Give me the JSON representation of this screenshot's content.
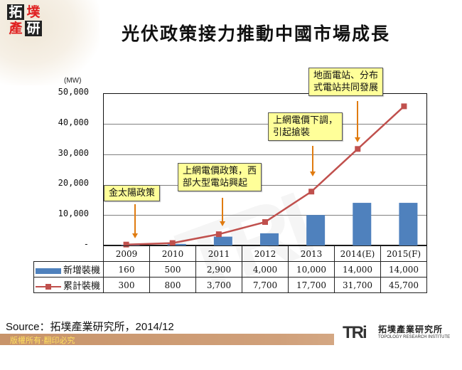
{
  "logo": {
    "chars": [
      "拓",
      "墣",
      "產",
      "研"
    ]
  },
  "title": "光伏政策接力推動中國市場成長",
  "y_axis": {
    "unit": "(MW)",
    "ticks": [
      "50,000",
      "40,000",
      "30,000",
      "20,000",
      "10,000",
      "-"
    ]
  },
  "callouts": [
    {
      "text": "金太陽政策",
      "year": "2009"
    },
    {
      "text": "上網電價政策，西\n部大型電站興起",
      "year": "2011"
    },
    {
      "text": "上網電價下調，\n引起搶裝",
      "year": "2013"
    },
    {
      "text": "地面電站、分布\n式電站共同發展",
      "year": "2014(E)"
    }
  ],
  "table": {
    "years": [
      "2009",
      "2010",
      "2011",
      "2012",
      "2013",
      "2014(E)",
      "2015(F)"
    ],
    "rows": [
      {
        "label": "新增裝機",
        "values": [
          "160",
          "500",
          "2,900",
          "4,000",
          "10,000",
          "14,000",
          "14,000"
        ]
      },
      {
        "label": "累計裝機",
        "values": [
          "300",
          "800",
          "3,700",
          "7,700",
          "17,700",
          "31,700",
          "45,700"
        ]
      }
    ]
  },
  "source": "Source：拓墣產業研究所，2014/12",
  "footer": {
    "copyright": "版權所有‧翻印必究",
    "brand_mark": "TRi",
    "brand_cn": "拓墣產業研究所",
    "brand_en": "TOPOLOGY RESEARCH INSTITUTE"
  },
  "colors": {
    "bar": "#4f81bd",
    "line": "#c0504d",
    "callout_fill": "#ffff99",
    "arrow": "#e07b10",
    "footer_bar": "#c8946a",
    "footer_text": "#ffe060"
  },
  "chart_data": {
    "type": "bar",
    "title": "光伏政策接力推動中國市場成長",
    "xlabel": "",
    "ylabel": "(MW)",
    "ylim": [
      0,
      50000
    ],
    "yticks": [
      0,
      10000,
      20000,
      30000,
      40000,
      50000
    ],
    "grid": true,
    "legend_position": "data-table",
    "categories": [
      "2009",
      "2010",
      "2011",
      "2012",
      "2013",
      "2014(E)",
      "2015(F)"
    ],
    "series": [
      {
        "name": "新增裝機",
        "type": "bar",
        "values": [
          160,
          500,
          2900,
          4000,
          10000,
          14000,
          14000
        ]
      },
      {
        "name": "累計裝機",
        "type": "line",
        "values": [
          300,
          800,
          3700,
          7700,
          17700,
          31700,
          45700
        ]
      }
    ],
    "annotations": [
      {
        "category": "2009",
        "text": "金太陽政策"
      },
      {
        "category": "2011",
        "text": "上網電價政策，西部大型電站興起"
      },
      {
        "category": "2013",
        "text": "上網電價下調，引起搶裝"
      },
      {
        "category": "2014(E)",
        "text": "地面電站、分布式電站共同發展"
      }
    ]
  }
}
